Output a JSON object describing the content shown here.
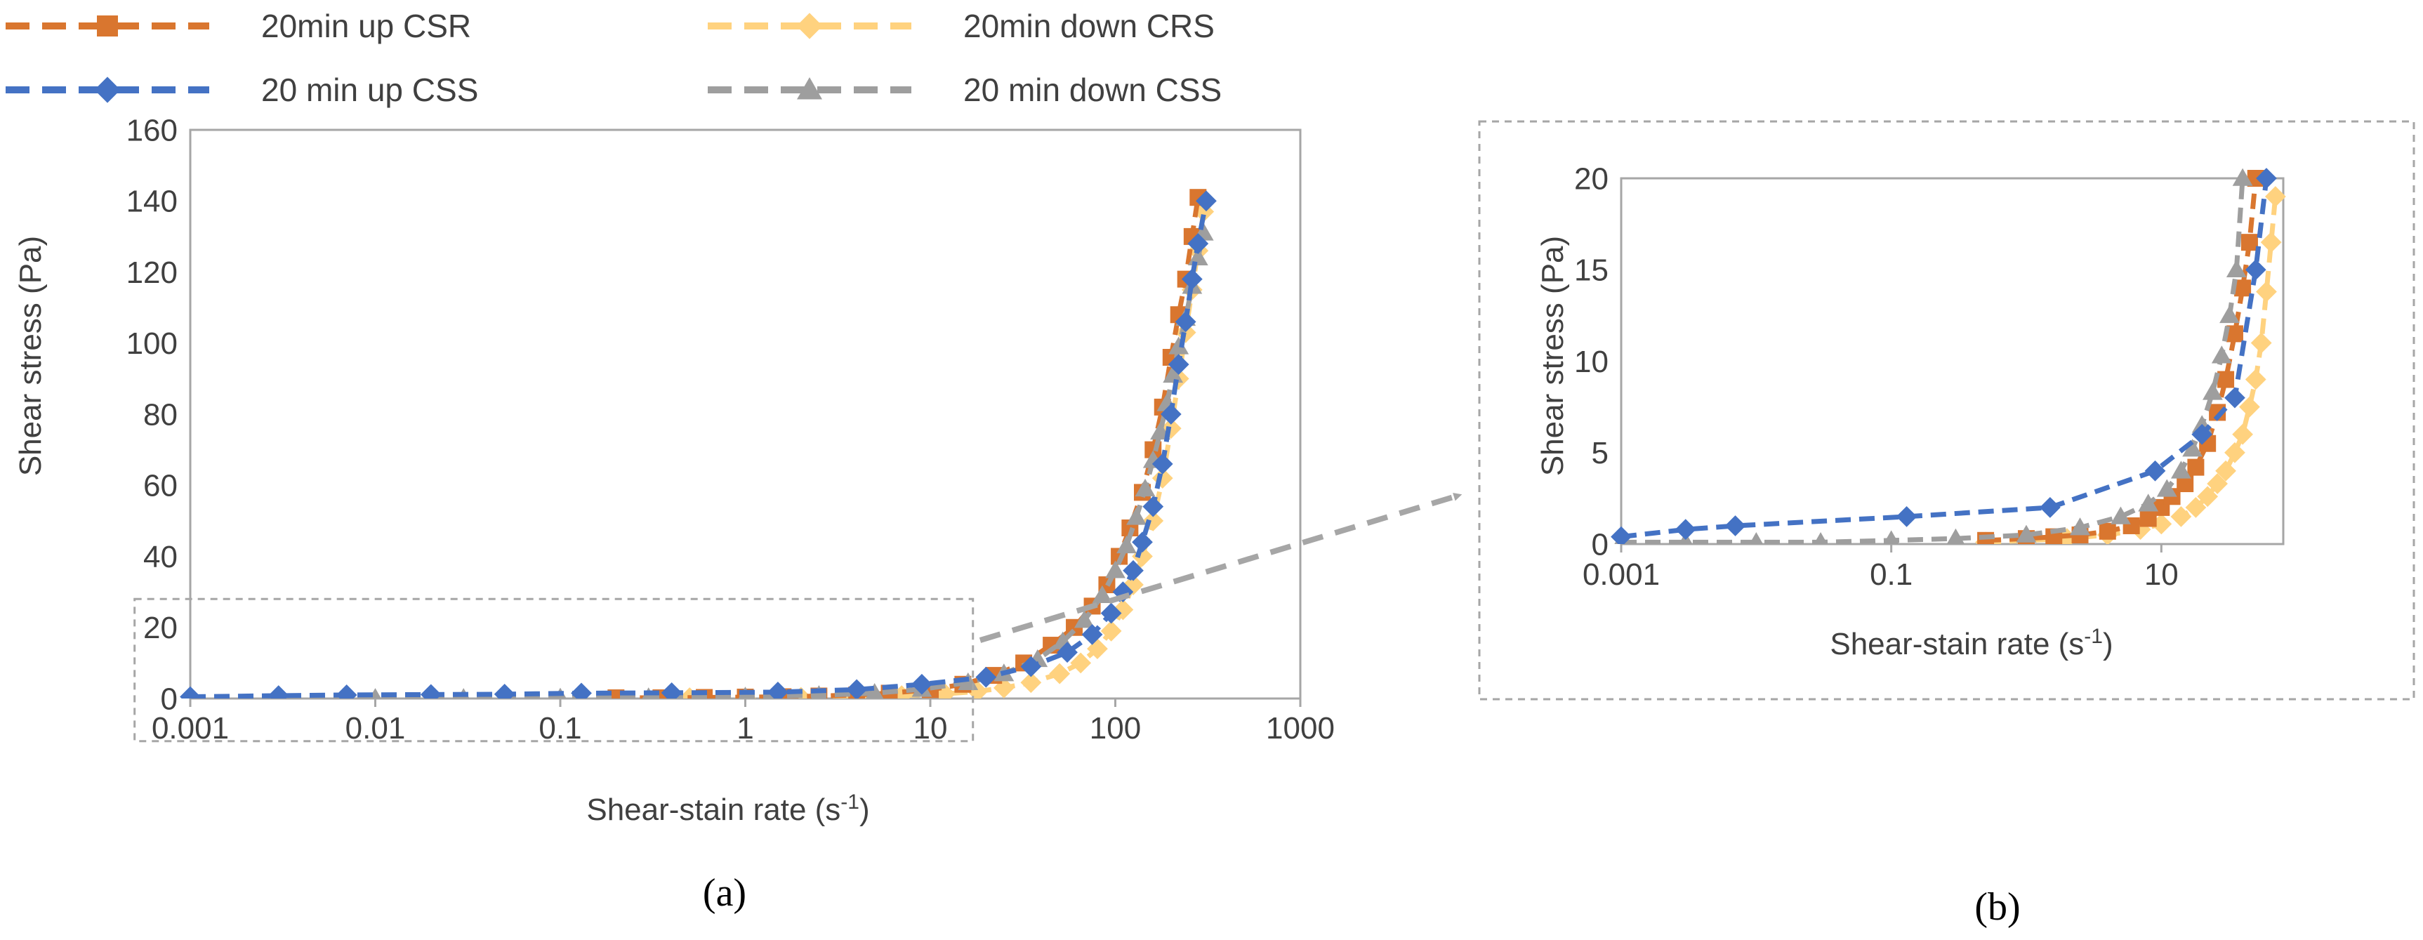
{
  "colors": {
    "up_csr": "#D9762F",
    "up_css": "#4472C4",
    "down_crs": "#FFD27F",
    "down_css": "#9E9E9E",
    "axis": "#A6A6A6",
    "text": "#404040",
    "callout": "#A6A6A6"
  },
  "panel_labels": {
    "a": "(a)",
    "b": "(b)"
  },
  "chart_data": [
    {
      "type": "line",
      "panel": "a",
      "xscale": "log",
      "xlim": [
        0.001,
        1000
      ],
      "ylim": [
        0,
        160
      ],
      "xlabel_main": "Shear-stain rate (s",
      "xlabel_sup": "-1",
      "xlabel_close": ")",
      "ylabel": "Shear stress (Pa)",
      "xticks": [
        0.001,
        0.01,
        0.1,
        1,
        10,
        100,
        1000
      ],
      "xtick_labels": [
        "0.001",
        "0.01",
        "0.1",
        "1",
        "10",
        "100",
        "1000"
      ],
      "yticks": [
        0,
        20,
        40,
        60,
        80,
        100,
        120,
        140,
        160
      ],
      "ytick_labels": [
        "0",
        "20",
        "40",
        "60",
        "80",
        "100",
        "120",
        "140",
        "160"
      ],
      "legend_position": "top",
      "series": [
        {
          "name": "20min up CSR",
          "key": "up_csr",
          "marker": "square",
          "x": [
            0.2,
            0.35,
            0.6,
            1,
            1.6,
            2.5,
            4,
            6,
            10,
            15,
            22,
            32,
            45,
            60,
            75,
            90,
            105,
            120,
            140,
            160,
            180,
            200,
            220,
            240,
            260,
            280
          ],
          "y": [
            0.2,
            0.2,
            0.3,
            0.4,
            0.5,
            0.7,
            1,
            1.5,
            2.5,
            4,
            6.5,
            10,
            15,
            20,
            26,
            32,
            40,
            48,
            58,
            70,
            82,
            96,
            108,
            118,
            130,
            141
          ]
        },
        {
          "name": "20 min up CSS",
          "key": "up_css",
          "marker": "diamond",
          "x": [
            0.001,
            0.003,
            0.007,
            0.02,
            0.05,
            0.13,
            0.4,
            1.5,
            4,
            9,
            20,
            35,
            55,
            75,
            95,
            110,
            125,
            140,
            160,
            180,
            200,
            220,
            240,
            260,
            280,
            310
          ],
          "y": [
            0.5,
            0.8,
            1,
            1.1,
            1.2,
            1.5,
            1.6,
            1.8,
            2.5,
            4,
            6,
            9,
            13,
            18,
            24,
            30,
            36,
            44,
            54,
            66,
            80,
            94,
            106,
            118,
            128,
            140
          ]
        },
        {
          "name": "20min down CRS",
          "key": "down_crs",
          "marker": "diamond",
          "x": [
            0.5,
            1,
            2,
            4,
            7,
            12,
            18,
            25,
            35,
            50,
            65,
            80,
            95,
            110,
            125,
            140,
            160,
            180,
            200,
            220,
            240,
            260,
            280,
            300
          ],
          "y": [
            0.2,
            0.2,
            0.3,
            0.5,
            0.8,
            1.3,
            2,
            3,
            4.5,
            7,
            10,
            14,
            19,
            25,
            32,
            40,
            50,
            62,
            76,
            90,
            103,
            115,
            126,
            137
          ]
        },
        {
          "name": "20 min down CSS",
          "key": "down_css",
          "marker": "triangle",
          "x": [
            0.001,
            0.003,
            0.01,
            0.03,
            0.1,
            0.3,
            1,
            2.5,
            5,
            9,
            16,
            25,
            38,
            52,
            68,
            85,
            100,
            115,
            130,
            145,
            160,
            175,
            190,
            205,
            220,
            240,
            260,
            280,
            300
          ],
          "y": [
            0.1,
            0.1,
            0.1,
            0.1,
            0.2,
            0.3,
            0.5,
            0.9,
            1.5,
            2.6,
            4.5,
            7,
            11,
            16,
            22,
            29,
            36,
            43,
            51,
            59,
            67,
            75,
            83,
            91,
            99,
            107,
            116,
            124,
            131
          ]
        }
      ],
      "legend": [
        {
          "label": "20min up CSR",
          "key": "up_csr",
          "marker": "square"
        },
        {
          "label": "20 min up CSS",
          "key": "up_css",
          "marker": "diamond"
        },
        {
          "label": "20min down CRS",
          "key": "down_crs",
          "marker": "diamond"
        },
        {
          "label": "20 min down CSS",
          "key": "down_css",
          "marker": "triangle"
        }
      ],
      "zoom_box": {
        "xlim": [
          0.0005,
          17
        ],
        "ylim": [
          -12,
          28
        ]
      }
    },
    {
      "type": "line",
      "panel": "b",
      "xscale": "log",
      "xlim": [
        0.001,
        80
      ],
      "ylim": [
        0,
        20
      ],
      "xlabel_main": "Shear-stain rate (s",
      "xlabel_sup": "-1",
      "xlabel_close": ")",
      "ylabel": "Shear stress (Pa)",
      "xticks": [
        0.001,
        0.1,
        10
      ],
      "xtick_labels": [
        "0.001",
        "0.1",
        "10"
      ],
      "yticks": [
        0,
        5,
        10,
        15,
        20
      ],
      "ytick_labels": [
        "0",
        "5",
        "10",
        "15",
        "20"
      ],
      "series": [
        {
          "name": "20min up CSR",
          "key": "up_csr",
          "marker": "square",
          "x": [
            0.5,
            1,
            1.6,
            2.5,
            4,
            6,
            8,
            10,
            12,
            15,
            18,
            22,
            26,
            30,
            35,
            40,
            45,
            50
          ],
          "y": [
            0.2,
            0.3,
            0.4,
            0.5,
            0.7,
            1,
            1.4,
            2,
            2.6,
            3.3,
            4.2,
            5.5,
            7.2,
            9,
            11.5,
            14,
            16.5,
            20
          ]
        },
        {
          "name": "20 min up CSS",
          "key": "up_css",
          "marker": "diamond",
          "x": [
            0.001,
            0.003,
            0.007,
            0.13,
            1.5,
            9,
            20,
            35,
            50,
            60
          ],
          "y": [
            0.4,
            0.8,
            1.0,
            1.5,
            2.0,
            4.0,
            6.0,
            8.0,
            15.0,
            20.0
          ]
        },
        {
          "name": "20min down CRS",
          "key": "down_crs",
          "marker": "diamond",
          "x": [
            0.5,
            1,
            2,
            4,
            7,
            10,
            14,
            18,
            22,
            26,
            30,
            35,
            40,
            45,
            50,
            55,
            60,
            65,
            70
          ],
          "y": [
            0.1,
            0.2,
            0.3,
            0.5,
            0.8,
            1.1,
            1.5,
            2,
            2.6,
            3.3,
            4,
            5,
            6,
            7.5,
            9,
            11,
            13.8,
            16.5,
            19
          ]
        },
        {
          "name": "20 min down CSS",
          "key": "down_css",
          "marker": "triangle",
          "x": [
            0.001,
            0.003,
            0.01,
            0.03,
            0.1,
            0.3,
            1,
            2.5,
            5,
            8,
            11,
            14,
            17,
            20,
            24,
            28,
            32,
            36,
            40
          ],
          "y": [
            0.1,
            0.1,
            0.1,
            0.1,
            0.2,
            0.3,
            0.5,
            0.9,
            1.5,
            2.2,
            3,
            4,
            5.2,
            6.5,
            8.3,
            10.3,
            12.5,
            15,
            20
          ]
        }
      ]
    }
  ]
}
